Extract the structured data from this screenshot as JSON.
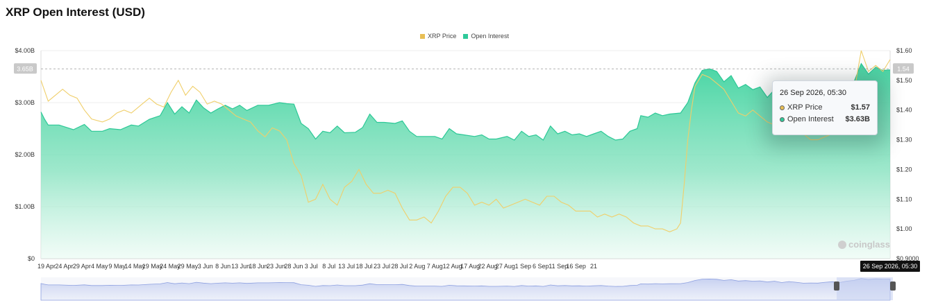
{
  "title": "XRP Open Interest (USD)",
  "legend": [
    {
      "label": "XRP Price",
      "color": "#e8bf55"
    },
    {
      "label": "Open Interest",
      "color": "#2ec99a"
    }
  ],
  "crosshair": {
    "left_label": "3.65B",
    "right_label": "1.54",
    "x_label": "26 Sep 2026, 05:30"
  },
  "tooltip": {
    "date": "26 Sep 2026, 05:30",
    "rows": [
      {
        "label": "XRP Price",
        "value": "$1.57",
        "color": "#e8bf55"
      },
      {
        "label": "Open Interest",
        "value": "$3.63B",
        "color": "#2ec99a"
      }
    ]
  },
  "watermark": "coinglass",
  "chart_data": {
    "type": "area",
    "title": "XRP Open Interest (USD)",
    "y_left": {
      "label": "",
      "ticks": [
        "$0",
        "$1.00B",
        "$2.00B",
        "$3.00B",
        "$4.00B"
      ],
      "range": [
        0,
        4.0
      ],
      "unit": "B USD"
    },
    "y_right": {
      "label": "",
      "ticks": [
        "$0.9000",
        "$1.00",
        "$1.10",
        "$1.20",
        "$1.30",
        "$1.40",
        "$1.50",
        "$1.60"
      ],
      "range": [
        0.9,
        1.6
      ]
    },
    "x_ticks": [
      "19 Apr",
      "24 Apr",
      "29 Apr",
      "4 May",
      "9 May",
      "14 May",
      "19 May",
      "24 May",
      "29 May",
      "3 Jun",
      "8 Jun",
      "13 Jun",
      "18 Jun",
      "23 Jun",
      "28 Jun",
      "3 Jul",
      "8 Jul",
      "13 Jul",
      "18 Jul",
      "23 Jul",
      "28 Jul",
      "2 Aug",
      "7 Aug",
      "12 Aug",
      "17 Aug",
      "22 Aug",
      "27 Aug",
      "1 Sep",
      "6 Sep",
      "11 Sep",
      "16 Sep",
      "21"
    ],
    "grid": true,
    "legend_position": "top-center",
    "x_domain": [
      "2026-04-19",
      "2026-09-26"
    ],
    "series": [
      {
        "name": "Open Interest",
        "axis": "left",
        "color": "#2ec99a",
        "points": [
          [
            0,
            2.82
          ],
          [
            1,
            2.68
          ],
          [
            2,
            2.57
          ],
          [
            5,
            2.57
          ],
          [
            9,
            2.48
          ],
          [
            12,
            2.58
          ],
          [
            14,
            2.45
          ],
          [
            17,
            2.45
          ],
          [
            19,
            2.5
          ],
          [
            22,
            2.48
          ],
          [
            25,
            2.57
          ],
          [
            27,
            2.55
          ],
          [
            30,
            2.68
          ],
          [
            33,
            2.75
          ],
          [
            35,
            3.0
          ],
          [
            37,
            2.78
          ],
          [
            39,
            2.92
          ],
          [
            41,
            2.8
          ],
          [
            43,
            3.05
          ],
          [
            45,
            2.9
          ],
          [
            47,
            2.8
          ],
          [
            49,
            2.88
          ],
          [
            51,
            2.95
          ],
          [
            53,
            2.88
          ],
          [
            55,
            2.95
          ],
          [
            57,
            2.85
          ],
          [
            60,
            2.95
          ],
          [
            63,
            2.95
          ],
          [
            66,
            3.0
          ],
          [
            68,
            2.98
          ],
          [
            70,
            2.97
          ],
          [
            72,
            2.6
          ],
          [
            74,
            2.5
          ],
          [
            76,
            2.3
          ],
          [
            78,
            2.45
          ],
          [
            80,
            2.42
          ],
          [
            82,
            2.55
          ],
          [
            84,
            2.42
          ],
          [
            87,
            2.43
          ],
          [
            89,
            2.52
          ],
          [
            91,
            2.78
          ],
          [
            93,
            2.62
          ],
          [
            95,
            2.62
          ],
          [
            98,
            2.6
          ],
          [
            100,
            2.65
          ],
          [
            102,
            2.45
          ],
          [
            104,
            2.35
          ],
          [
            106,
            2.35
          ],
          [
            109,
            2.35
          ],
          [
            111,
            2.3
          ],
          [
            113,
            2.5
          ],
          [
            115,
            2.4
          ],
          [
            117,
            2.38
          ],
          [
            120,
            2.35
          ],
          [
            122,
            2.38
          ],
          [
            124,
            2.3
          ],
          [
            126,
            2.3
          ],
          [
            129,
            2.35
          ],
          [
            131,
            2.28
          ],
          [
            133,
            2.45
          ],
          [
            135,
            2.35
          ],
          [
            137,
            2.38
          ],
          [
            139,
            2.28
          ],
          [
            141,
            2.55
          ],
          [
            143,
            2.4
          ],
          [
            145,
            2.45
          ],
          [
            147,
            2.38
          ],
          [
            149,
            2.4
          ],
          [
            151,
            2.35
          ],
          [
            153,
            2.4
          ],
          [
            155,
            2.45
          ],
          [
            157,
            2.35
          ],
          [
            159,
            2.28
          ],
          [
            161,
            2.3
          ],
          [
            163,
            2.45
          ],
          [
            165,
            2.5
          ],
          [
            166,
            2.75
          ],
          [
            168,
            2.72
          ],
          [
            170,
            2.8
          ],
          [
            172,
            2.75
          ],
          [
            174,
            2.78
          ],
          [
            177,
            2.8
          ],
          [
            179,
            3.0
          ],
          [
            181,
            3.38
          ],
          [
            183,
            3.62
          ],
          [
            185,
            3.65
          ],
          [
            187,
            3.6
          ],
          [
            189,
            3.4
          ],
          [
            191,
            3.52
          ],
          [
            193,
            3.28
          ],
          [
            195,
            3.35
          ],
          [
            197,
            3.25
          ],
          [
            199,
            3.3
          ],
          [
            201,
            3.1
          ],
          [
            203,
            3.25
          ],
          [
            205,
            3.0
          ],
          [
            207,
            3.18
          ],
          [
            209,
            3.05
          ],
          [
            211,
            2.88
          ],
          [
            213,
            2.92
          ],
          [
            215,
            2.9
          ],
          [
            217,
            3.05
          ],
          [
            219,
            3.15
          ],
          [
            221,
            3.0
          ],
          [
            223,
            3.25
          ],
          [
            225,
            3.4
          ],
          [
            227,
            3.75
          ],
          [
            229,
            3.55
          ],
          [
            231,
            3.68
          ],
          [
            233,
            3.62
          ],
          [
            235,
            3.63
          ]
        ]
      },
      {
        "name": "XRP Price",
        "axis": "right",
        "color": "#e8bf55",
        "points": [
          [
            0,
            1.5
          ],
          [
            2,
            1.43
          ],
          [
            4,
            1.45
          ],
          [
            6,
            1.47
          ],
          [
            8,
            1.45
          ],
          [
            10,
            1.44
          ],
          [
            12,
            1.4
          ],
          [
            14,
            1.37
          ],
          [
            17,
            1.36
          ],
          [
            19,
            1.37
          ],
          [
            21,
            1.39
          ],
          [
            23,
            1.4
          ],
          [
            25,
            1.39
          ],
          [
            27,
            1.41
          ],
          [
            28,
            1.42
          ],
          [
            30,
            1.44
          ],
          [
            32,
            1.42
          ],
          [
            34,
            1.41
          ],
          [
            36,
            1.46
          ],
          [
            38,
            1.5
          ],
          [
            40,
            1.45
          ],
          [
            42,
            1.48
          ],
          [
            44,
            1.46
          ],
          [
            46,
            1.42
          ],
          [
            48,
            1.43
          ],
          [
            50,
            1.42
          ],
          [
            52,
            1.4
          ],
          [
            54,
            1.38
          ],
          [
            56,
            1.37
          ],
          [
            58,
            1.36
          ],
          [
            60,
            1.33
          ],
          [
            62,
            1.31
          ],
          [
            64,
            1.34
          ],
          [
            66,
            1.33
          ],
          [
            68,
            1.3
          ],
          [
            70,
            1.22
          ],
          [
            72,
            1.18
          ],
          [
            74,
            1.09
          ],
          [
            76,
            1.1
          ],
          [
            78,
            1.15
          ],
          [
            80,
            1.1
          ],
          [
            82,
            1.08
          ],
          [
            84,
            1.14
          ],
          [
            86,
            1.16
          ],
          [
            88,
            1.2
          ],
          [
            90,
            1.15
          ],
          [
            92,
            1.12
          ],
          [
            94,
            1.12
          ],
          [
            96,
            1.13
          ],
          [
            98,
            1.12
          ],
          [
            100,
            1.07
          ],
          [
            102,
            1.03
          ],
          [
            104,
            1.03
          ],
          [
            106,
            1.04
          ],
          [
            108,
            1.02
          ],
          [
            110,
            1.06
          ],
          [
            112,
            1.11
          ],
          [
            114,
            1.14
          ],
          [
            116,
            1.14
          ],
          [
            118,
            1.12
          ],
          [
            120,
            1.08
          ],
          [
            122,
            1.09
          ],
          [
            124,
            1.08
          ],
          [
            126,
            1.1
          ],
          [
            128,
            1.07
          ],
          [
            130,
            1.08
          ],
          [
            132,
            1.09
          ],
          [
            134,
            1.1
          ],
          [
            136,
            1.09
          ],
          [
            138,
            1.08
          ],
          [
            140,
            1.11
          ],
          [
            142,
            1.11
          ],
          [
            144,
            1.09
          ],
          [
            146,
            1.08
          ],
          [
            148,
            1.06
          ],
          [
            150,
            1.06
          ],
          [
            152,
            1.06
          ],
          [
            154,
            1.04
          ],
          [
            156,
            1.05
          ],
          [
            158,
            1.04
          ],
          [
            160,
            1.05
          ],
          [
            162,
            1.04
          ],
          [
            164,
            1.02
          ],
          [
            166,
            1.01
          ],
          [
            168,
            1.01
          ],
          [
            170,
            1.0
          ],
          [
            172,
            1.0
          ],
          [
            174,
            0.99
          ],
          [
            176,
            1.0
          ],
          [
            177,
            1.02
          ],
          [
            178,
            1.15
          ],
          [
            179,
            1.3
          ],
          [
            180,
            1.4
          ],
          [
            181,
            1.48
          ],
          [
            182,
            1.5
          ],
          [
            183,
            1.52
          ],
          [
            185,
            1.51
          ],
          [
            187,
            1.49
          ],
          [
            189,
            1.47
          ],
          [
            191,
            1.43
          ],
          [
            193,
            1.39
          ],
          [
            195,
            1.38
          ],
          [
            197,
            1.4
          ],
          [
            199,
            1.38
          ],
          [
            201,
            1.36
          ],
          [
            203,
            1.35
          ],
          [
            205,
            1.34
          ],
          [
            207,
            1.33
          ],
          [
            209,
            1.34
          ],
          [
            211,
            1.32
          ],
          [
            213,
            1.3
          ],
          [
            215,
            1.3
          ],
          [
            217,
            1.31
          ],
          [
            219,
            1.32
          ],
          [
            221,
            1.35
          ],
          [
            223,
            1.4
          ],
          [
            225,
            1.46
          ],
          [
            227,
            1.6
          ],
          [
            229,
            1.53
          ],
          [
            231,
            1.55
          ],
          [
            233,
            1.53
          ],
          [
            235,
            1.57
          ]
        ]
      }
    ],
    "navigator": {
      "series": "Open Interest",
      "selection": "last ~6 days"
    }
  }
}
